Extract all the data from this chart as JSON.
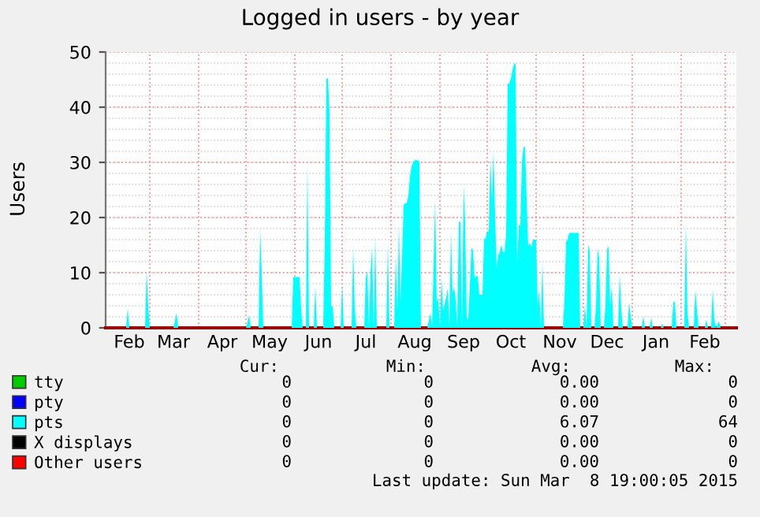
{
  "chart_data": {
    "type": "area",
    "title": "Logged in users - by year",
    "ylabel": "Users",
    "xlim": [
      "2014-02-01",
      "2015-03-08"
    ],
    "ylim": [
      0,
      50
    ],
    "yticks": [
      0,
      10,
      20,
      30,
      40,
      50
    ],
    "xticks": [
      {
        "value": "2014-03-01",
        "label": null
      },
      {
        "value": "2014-04-01",
        "label": null
      },
      {
        "value": "2014-05-01",
        "label": null
      },
      {
        "value": "2014-06-01",
        "label": null
      },
      {
        "value": "2014-07-01",
        "label": null
      },
      {
        "value": "2014-08-01",
        "label": null
      },
      {
        "value": "2014-09-01",
        "label": null
      },
      {
        "value": "2014-10-01",
        "label": null
      },
      {
        "value": "2014-11-01",
        "label": null
      },
      {
        "value": "2014-12-01",
        "label": null
      },
      {
        "value": "2015-01-01",
        "label": null
      },
      {
        "value": "2015-02-01",
        "label": null
      },
      {
        "value": "2015-03-01",
        "label": null
      },
      {
        "value": "2014-02-16",
        "label": "Feb"
      },
      {
        "value": "2014-03-16",
        "label": "Mar"
      },
      {
        "value": "2014-04-16",
        "label": "Apr"
      },
      {
        "value": "2014-05-16",
        "label": "May"
      },
      {
        "value": "2014-06-16",
        "label": "Jun"
      },
      {
        "value": "2014-07-16",
        "label": "Jul"
      },
      {
        "value": "2014-08-16",
        "label": "Aug"
      },
      {
        "value": "2014-09-16",
        "label": "Sep"
      },
      {
        "value": "2014-10-16",
        "label": "Oct"
      },
      {
        "value": "2014-11-16",
        "label": "Nov"
      },
      {
        "value": "2014-12-16",
        "label": "Dec"
      },
      {
        "value": "2015-01-16",
        "label": "Jan"
      },
      {
        "value": "2015-02-16",
        "label": "Feb"
      }
    ],
    "grid": true,
    "legend": "bottom",
    "series": [
      {
        "name": "tty",
        "color": "#00cc00"
      },
      {
        "name": "pty",
        "color": "#0000ff"
      },
      {
        "name": "pts",
        "color": "#00ffff",
        "x": [
          "2014-02-01",
          "2014-02-14",
          "2014-02-15",
          "2014-02-16",
          "2014-02-26",
          "2014-02-27",
          "2014-02-28",
          "2014-03-01",
          "2014-03-16",
          "2014-03-17",
          "2014-03-18",
          "2014-03-19",
          "2014-05-01",
          "2014-05-02",
          "2014-05-03",
          "2014-05-04",
          "2014-05-09",
          "2014-05-10",
          "2014-05-11",
          "2014-05-12",
          "2014-05-30",
          "2014-05-31",
          "2014-06-04",
          "2014-06-05",
          "2014-06-06",
          "2014-06-08",
          "2014-06-09",
          "2014-06-10",
          "2014-06-13",
          "2014-06-14",
          "2014-06-15",
          "2014-06-19",
          "2014-06-20",
          "2014-06-21",
          "2014-06-22",
          "2014-06-23",
          "2014-06-24",
          "2014-06-25",
          "2014-06-26",
          "2014-06-30",
          "2014-07-01",
          "2014-07-02",
          "2014-07-07",
          "2014-07-08",
          "2014-07-09",
          "2014-07-10",
          "2014-07-15",
          "2014-07-16",
          "2014-07-17",
          "2014-07-18",
          "2014-07-19",
          "2014-07-20",
          "2014-07-21",
          "2014-07-22",
          "2014-07-23",
          "2014-07-29",
          "2014-07-30",
          "2014-07-31",
          "2014-08-03",
          "2014-08-04",
          "2014-08-05",
          "2014-08-06",
          "2014-08-07",
          "2014-08-08",
          "2014-08-09",
          "2014-08-10",
          "2014-08-11",
          "2014-08-12",
          "2014-08-13",
          "2014-08-14",
          "2014-08-15",
          "2014-08-16",
          "2014-08-17",
          "2014-08-18",
          "2014-08-19",
          "2014-08-20",
          "2014-08-24",
          "2014-08-25",
          "2014-08-26",
          "2014-08-27",
          "2014-08-28",
          "2014-08-29",
          "2014-08-30",
          "2014-08-31",
          "2014-09-01",
          "2014-09-02",
          "2014-09-03",
          "2014-09-04",
          "2014-09-05",
          "2014-09-06",
          "2014-09-07",
          "2014-09-08",
          "2014-09-09",
          "2014-09-10",
          "2014-09-11",
          "2014-09-12",
          "2014-09-13",
          "2014-09-14",
          "2014-09-15",
          "2014-09-16",
          "2014-09-17",
          "2014-09-18",
          "2014-09-19",
          "2014-09-20",
          "2014-09-21",
          "2014-09-22",
          "2014-09-23",
          "2014-09-24",
          "2014-09-25",
          "2014-09-26",
          "2014-09-27",
          "2014-09-28",
          "2014-09-29",
          "2014-09-30",
          "2014-10-01",
          "2014-10-02",
          "2014-10-03",
          "2014-10-04",
          "2014-10-05",
          "2014-10-06",
          "2014-10-07",
          "2014-10-08",
          "2014-10-09",
          "2014-10-10",
          "2014-10-11",
          "2014-10-12",
          "2014-10-13",
          "2014-10-14",
          "2014-10-15",
          "2014-10-16",
          "2014-10-17",
          "2014-10-18",
          "2014-10-19",
          "2014-10-20",
          "2014-10-21",
          "2014-10-22",
          "2014-10-23",
          "2014-10-24",
          "2014-10-25",
          "2014-10-26",
          "2014-10-27",
          "2014-10-28",
          "2014-10-29",
          "2014-10-30",
          "2014-10-31",
          "2014-11-01",
          "2014-11-02",
          "2014-11-03",
          "2014-11-04",
          "2014-11-05",
          "2014-11-06",
          "2014-11-18",
          "2014-11-19",
          "2014-11-20",
          "2014-11-21",
          "2014-11-22",
          "2014-11-28",
          "2014-11-29",
          "2014-12-01",
          "2014-12-02",
          "2014-12-03",
          "2014-12-04",
          "2014-12-05",
          "2014-12-06",
          "2014-12-08",
          "2014-12-09",
          "2014-12-10",
          "2014-12-11",
          "2014-12-12",
          "2014-12-14",
          "2014-12-15",
          "2014-12-16",
          "2014-12-17",
          "2014-12-18",
          "2014-12-19",
          "2014-12-20",
          "2014-12-23",
          "2014-12-24",
          "2014-12-25",
          "2014-12-26",
          "2014-12-29",
          "2014-12-30",
          "2014-12-31",
          "2015-01-01",
          "2015-01-07",
          "2015-01-08",
          "2015-01-09",
          "2015-01-12",
          "2015-01-13",
          "2015-01-14",
          "2015-01-19",
          "2015-01-20",
          "2015-01-21",
          "2015-01-26",
          "2015-01-27",
          "2015-01-28",
          "2015-01-29",
          "2015-02-03",
          "2015-02-04",
          "2015-02-05",
          "2015-02-06",
          "2015-02-09",
          "2015-02-10",
          "2015-02-11",
          "2015-02-12",
          "2015-02-16",
          "2015-02-17",
          "2015-02-18",
          "2015-02-20",
          "2015-02-21",
          "2015-02-22",
          "2015-02-23",
          "2015-02-25",
          "2015-02-26",
          "2015-03-08"
        ],
        "values": [
          0,
          0,
          3.6,
          0,
          0,
          10.5,
          4,
          0,
          0,
          1.4,
          2.7,
          0,
          0,
          1,
          2.4,
          0,
          0,
          18,
          10,
          0,
          0,
          9.2,
          9.2,
          3.4,
          0,
          0,
          30,
          0,
          0,
          7.6,
          0,
          0,
          15.9,
          45.2,
          45.2,
          39.2,
          3.9,
          3.9,
          0,
          0,
          8.2,
          0,
          0,
          14.6,
          3.4,
          0,
          0,
          9.1,
          10.3,
          0,
          10,
          14.6,
          0,
          16.8,
          0,
          0,
          15.4,
          0,
          0,
          13.2,
          3,
          18.8,
          4.6,
          12.7,
          22.3,
          22.6,
          22.6,
          23.9,
          27.5,
          29.2,
          30,
          30.4,
          30.4,
          30.4,
          30.1,
          0,
          0,
          1.4,
          2.7,
          0,
          11.3,
          23.4,
          4.6,
          5.5,
          0,
          9.1,
          3.2,
          4.3,
          5.6,
          7.2,
          0,
          17.5,
          6.2,
          7.4,
          5,
          0,
          19.2,
          19.2,
          0,
          25.9,
          19.2,
          1.6,
          1.7,
          7.8,
          14.6,
          14,
          9,
          9.4,
          9.4,
          6,
          6,
          6,
          16,
          16.3,
          17.5,
          17.5,
          30.7,
          23.3,
          32,
          20.4,
          10.6,
          13.2,
          13.7,
          15.1,
          13.7,
          13.7,
          17,
          44.3,
          44.3,
          45.2,
          46.7,
          47.9,
          47.9,
          11.8,
          18.6,
          18.6,
          30.1,
          32.8,
          32.8,
          23.4,
          14.8,
          15.4,
          14.6,
          16,
          16,
          16,
          4.1,
          7,
          0,
          12,
          0,
          0,
          5,
          15.6,
          16,
          17.2,
          17.2,
          0,
          0,
          4.1,
          0,
          15.1,
          14,
          0,
          0,
          4.1,
          14.3,
          12.7,
          0,
          0,
          4.1,
          14.3,
          14.8,
          4,
          7.6,
          0,
          0,
          9.8,
          3.5,
          0,
          0,
          4.6,
          2.2,
          0,
          0,
          2.1,
          0,
          0,
          1.9,
          0,
          0,
          0.8,
          0,
          0,
          4.6,
          4.8,
          0,
          0,
          19.1,
          2.7,
          0,
          0,
          7,
          3.4,
          0,
          0,
          1.5,
          0,
          0,
          7,
          1.8,
          0,
          1.2,
          0,
          0
        ]
      },
      {
        "name": "X displays",
        "color": "#000000"
      },
      {
        "name": "Other users",
        "color": "#ff0000"
      }
    ],
    "annotations": [
      "Cur:",
      "Min:",
      "Avg:",
      "Max:",
      "0",
      "0",
      "0.00",
      "0",
      "0",
      "0",
      "0.00",
      "0",
      "0",
      "0",
      "6.07",
      "64",
      "0",
      "0",
      "0.00",
      "0",
      "0",
      "0",
      "0.00",
      "0",
      "Last update: Sun Mar  8 19:00:05 2015"
    ]
  }
}
